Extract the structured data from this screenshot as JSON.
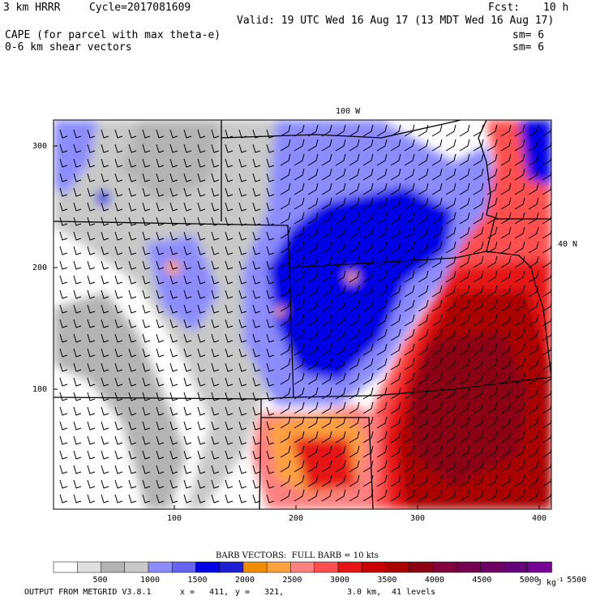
{
  "header": {
    "model": "3 km HRRR",
    "cycle": "Cycle=2017081609",
    "fcst_label": "Fcst:",
    "fcst_value": "10 h",
    "valid": "Valid: 19 UTC Wed 16 Aug 17 (13 MDT Wed 16 Aug 17)",
    "field1": "CAPE (for parcel with max theta-e)",
    "field2": "0-6 km shear vectors",
    "sm1": "sm= 6",
    "sm2": "sm= 6"
  },
  "map": {
    "meridian_label": "100 W",
    "parallel_label": "40 N",
    "x_ticks": [
      "100",
      "200",
      "300",
      "400"
    ],
    "y_ticks": [
      "300",
      "200",
      "100"
    ]
  },
  "legend": {
    "barb_caption": "BARB VECTORS:  FULL BARB = 10 kts",
    "levels": [
      "500",
      "1000",
      "1500",
      "2000",
      "2500",
      "3000",
      "3500",
      "4000",
      "4500",
      "5000",
      "5500"
    ],
    "units": "J kg",
    "units_exp": "-1",
    "colors": [
      "#ffffff",
      "#e0e0e0",
      "#b4b4b4",
      "#c8c8c8",
      "#8c8cff",
      "#6464f0",
      "#0000e6",
      "#1e1ed2",
      "#f08c00",
      "#ffa040",
      "#ff8080",
      "#ff5050",
      "#e61414",
      "#c80000",
      "#aa0000",
      "#8c0014",
      "#82003c",
      "#780050",
      "#6e0064",
      "#640078",
      "#780096"
    ]
  },
  "footer": {
    "output": "OUTPUT FROM METGRID V3.8.1",
    "x": "x =   411,",
    "y": "y =   321,",
    "res": "3.0 km,",
    "levels": "41 levels"
  }
}
